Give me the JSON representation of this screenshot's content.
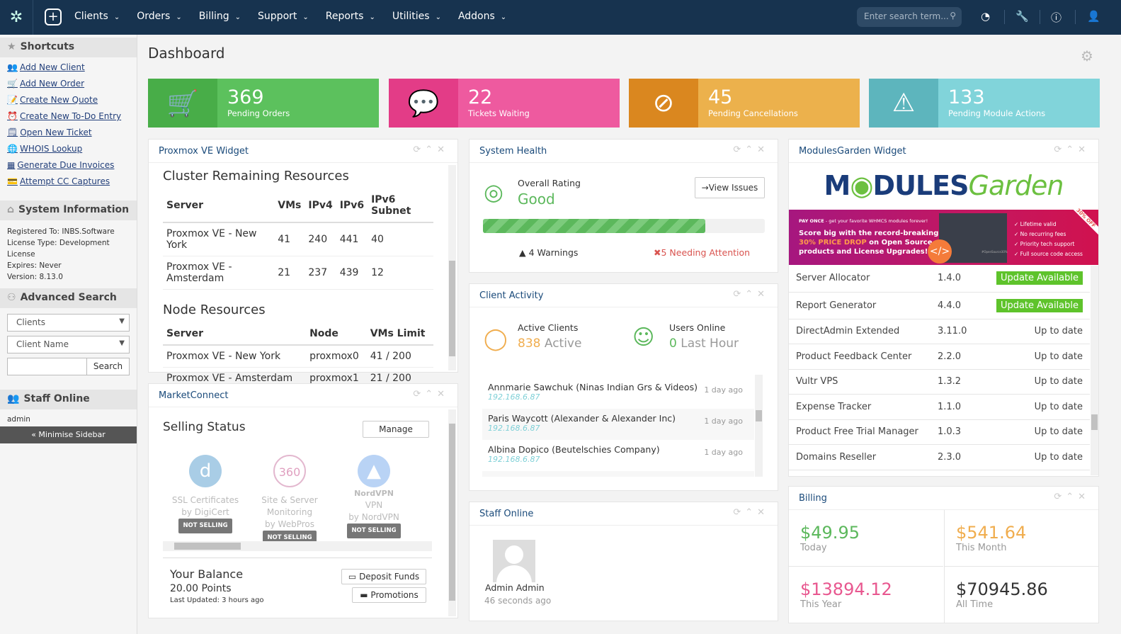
{
  "nav": {
    "menu": [
      "Clients",
      "Orders",
      "Billing",
      "Support",
      "Reports",
      "Utilities",
      "Addons"
    ],
    "search_placeholder": "Enter search term..."
  },
  "sidebar": {
    "shortcuts_title": "Shortcuts",
    "shortcuts": [
      {
        "label": "Add New Client",
        "icon": "👥"
      },
      {
        "label": "Add New Order",
        "icon": "🛒"
      },
      {
        "label": "Create New Quote",
        "icon": "📝"
      },
      {
        "label": "Create New To-Do Entry",
        "icon": "⏰"
      },
      {
        "label": "Open New Ticket",
        "icon": "🗒"
      },
      {
        "label": "WHOIS Lookup",
        "icon": "🌐"
      },
      {
        "label": "Generate Due Invoices",
        "icon": "▦"
      },
      {
        "label": "Attempt CC Captures",
        "icon": "💳"
      }
    ],
    "sysinfo_title": "System Information",
    "sysinfo": [
      "Registered To: INBS.Software",
      "License Type: Development",
      "License",
      "Expires: Never",
      "Version: 8.13.0"
    ],
    "adv_title": "Advanced Search",
    "adv_select1": "Clients",
    "adv_select2": "Client Name",
    "adv_button": "Search",
    "staff_title": "Staff Online",
    "staff_user": "admin",
    "minimise": "« Minimise Sidebar"
  },
  "page": {
    "title": "Dashboard"
  },
  "tiles": [
    {
      "value": "369",
      "label": "Pending Orders",
      "icon": "🛒",
      "color": "#5cc15d",
      "icon_bg": "#48ad48"
    },
    {
      "value": "22",
      "label": "Tickets Waiting",
      "icon": "💬",
      "color": "#ee5a9f",
      "icon_bg": "#e33c87"
    },
    {
      "value": "45",
      "label": "Pending Cancellations",
      "icon": "⊘",
      "color": "#ecb14c",
      "icon_bg": "#da871f"
    },
    {
      "value": "133",
      "label": "Pending Module Actions",
      "icon": "⚠",
      "color": "#81d4da",
      "icon_bg": "#5db5bd"
    }
  ],
  "proxmox": {
    "title": "Proxmox VE Widget",
    "cluster_title": "Cluster Remaining Resources",
    "cluster_headers": [
      "Server",
      "VMs",
      "IPv4",
      "IPv6",
      "IPv6 Subnet"
    ],
    "cluster_rows": [
      [
        "Proxmox VE - New York",
        "41",
        "240",
        "441",
        "40"
      ],
      [
        "Proxmox VE - Amsterdam",
        "21",
        "237",
        "439",
        "12"
      ]
    ],
    "node_title": "Node Resources",
    "node_headers": [
      "Server",
      "Node",
      "VMs Limit"
    ],
    "node_rows": [
      [
        "Proxmox VE - New York",
        "proxmox0",
        "41 / 200"
      ],
      [
        "Proxmox VE - Amsterdam",
        "proxmox1",
        "21 / 200"
      ]
    ]
  },
  "marketconnect": {
    "title": "MarketConnect",
    "selling_status": "Selling Status",
    "manage": "Manage",
    "products": [
      {
        "name": "SSL Certificates",
        "by": "by DigiCert",
        "status": "NOT SELLING"
      },
      {
        "name": "Site & Server Monitoring",
        "by": "by WebPros",
        "status": "NOT SELLING"
      },
      {
        "name": "VPN",
        "by": "by NordVPN",
        "status": "NOT SELLING",
        "logo_text": "NordVPN"
      }
    ],
    "balance_title": "Your Balance",
    "balance": "20.00 Points",
    "updated": "Last Updated: 3 hours ago",
    "deposit": "Deposit Funds",
    "promotions": "Promotions"
  },
  "health": {
    "title": "System Health",
    "rating_label": "Overall Rating",
    "rating": "Good",
    "view_issues": "View Issues",
    "progress_pct": 79,
    "warnings": "4 Warnings",
    "attention": "5 Needing Attention"
  },
  "activity": {
    "title": "Client Activity",
    "active_label": "Active Clients",
    "active_value": "838",
    "active_suffix": "Active",
    "online_label": "Users Online",
    "online_value": "0",
    "online_suffix": "Last Hour",
    "items": [
      {
        "name": "Annmarie Sawchuk (Ninas Indian Grs & Videos)",
        "ip": "192.168.6.87",
        "time": "1 day ago"
      },
      {
        "name": "Paris Waycott (Alexander & Alexander Inc)",
        "ip": "192.168.6.87",
        "time": "1 day ago"
      },
      {
        "name": "Albina Dopico (Beutelschies Company)",
        "ip": "192.168.6.87",
        "time": "1 day ago"
      }
    ]
  },
  "staff": {
    "title": "Staff Online",
    "name": "Admin Admin",
    "time": "46 seconds ago"
  },
  "mg": {
    "title": "ModulesGarden Widget",
    "logo": "MODULESGarden",
    "banner": {
      "pay_once": "PAY ONCE",
      "pay_sub": "- get your favorite WHMCS modules forever!",
      "headline1": "Score big with the record-breaking",
      "highlight": "30% PRICE DROP",
      "headline2": "on Open Source products and License Upgrades!",
      "bullets": [
        "Lifetime valid",
        "No recurring fees",
        "Priority tech support",
        "Full source code access"
      ],
      "corner": "30% OFF",
      "tag": "#OpenSource30%"
    },
    "modules": [
      {
        "name": "Server Allocator",
        "version": "1.4.0",
        "status": "Update Available",
        "update": true
      },
      {
        "name": "Report Generator",
        "version": "4.4.0",
        "status": "Update Available",
        "update": true
      },
      {
        "name": "DirectAdmin Extended",
        "version": "3.11.0",
        "status": "Up to date"
      },
      {
        "name": "Product Feedback Center",
        "version": "2.2.0",
        "status": "Up to date"
      },
      {
        "name": "Vultr VPS",
        "version": "1.3.2",
        "status": "Up to date"
      },
      {
        "name": "Expense Tracker",
        "version": "1.1.0",
        "status": "Up to date"
      },
      {
        "name": "Product Free Trial Manager",
        "version": "1.0.3",
        "status": "Up to date"
      },
      {
        "name": "Domains Reseller",
        "version": "2.3.0",
        "status": "Up to date"
      }
    ]
  },
  "billing": {
    "title": "Billing",
    "cells": [
      {
        "value": "$49.95",
        "label": "Today",
        "color": "#5cb85c"
      },
      {
        "value": "$541.64",
        "label": "This Month",
        "color": "#f0ad4e"
      },
      {
        "value": "$13894.12",
        "label": "This Year",
        "color": "#e8578f"
      },
      {
        "value": "$70945.86",
        "label": "All Time",
        "color": "#333333"
      }
    ]
  }
}
